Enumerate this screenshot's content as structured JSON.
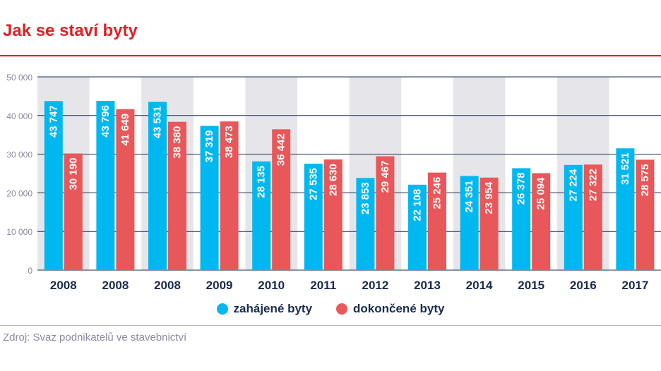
{
  "title": "Jak se staví byty",
  "source": "Zdroj: Svaz podnikatelů ve stavebnictví",
  "colors": {
    "started": "#00b8f0",
    "completed": "#e8585a",
    "title": "#e31e24",
    "band": "#e6e6ea",
    "grid": "#1a2b4c"
  },
  "chart_data": {
    "type": "bar",
    "title": "Jak se staví byty",
    "categories": [
      "2008",
      "2008",
      "2008",
      "2009",
      "2010",
      "2011",
      "2012",
      "2013",
      "2014",
      "2015",
      "2016",
      "2017"
    ],
    "series": [
      {
        "name": "zahájené byty",
        "values": [
          43747,
          43796,
          43531,
          37319,
          28135,
          27535,
          23853,
          22108,
          24351,
          26378,
          27224,
          31521
        ]
      },
      {
        "name": "dokončené byty",
        "values": [
          30190,
          41649,
          38380,
          38473,
          36442,
          28630,
          29467,
          25246,
          23954,
          25094,
          27322,
          28575
        ]
      }
    ],
    "value_labels": {
      "zahájené byty": [
        "43 747",
        "43 796",
        "43 531",
        "37 319",
        "28 135",
        "27 535",
        "23 853",
        "22 108",
        "24 351",
        "26 378",
        "27 224",
        "31 521"
      ],
      "dokončené byty": [
        "30 190",
        "41 649",
        "38 380",
        "38 473",
        "36 442",
        "28 630",
        "29 467",
        "25 246",
        "23 954",
        "25 094",
        "27 322",
        "28 575"
      ]
    },
    "y_ticks": [
      0,
      10000,
      20000,
      30000,
      40000,
      50000
    ],
    "y_tick_labels": [
      "0",
      "10 000",
      "20 000",
      "30 000",
      "40 000",
      "50 000"
    ],
    "ylim": [
      0,
      50000
    ],
    "grid": true,
    "alternating_bands": true,
    "legend_position": "bottom"
  }
}
